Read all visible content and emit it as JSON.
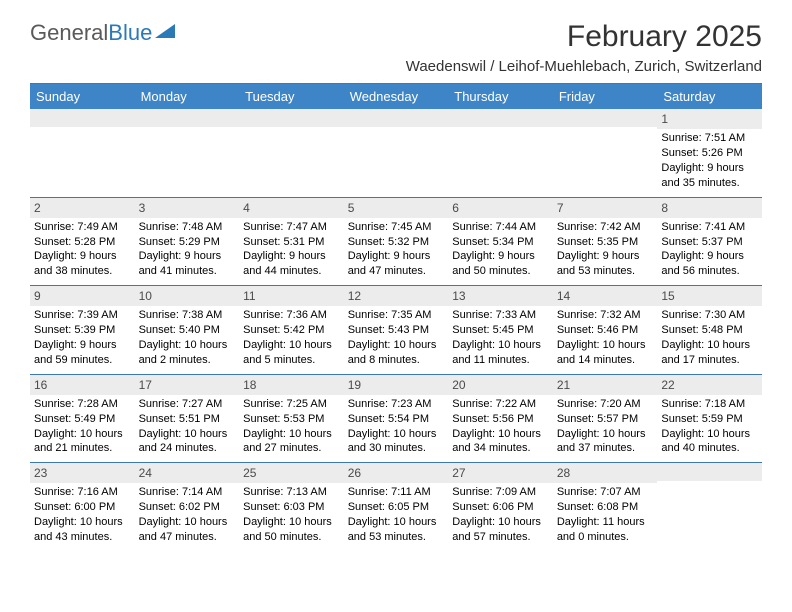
{
  "logo": {
    "text1": "General",
    "text2": "Blue"
  },
  "title": "February 2025",
  "location": "Waedenswil / Leihof-Muehlebach, Zurich, Switzerland",
  "colors": {
    "header_bg": "#3d85c6",
    "header_text": "#ffffff",
    "daynum_bg": "#ececec",
    "rule": "#3d78b0",
    "logo_gray": "#5a5a5a",
    "logo_blue": "#2a7ab8"
  },
  "weekdays": [
    "Sunday",
    "Monday",
    "Tuesday",
    "Wednesday",
    "Thursday",
    "Friday",
    "Saturday"
  ],
  "weeks": [
    [
      {
        "n": "",
        "sr": "",
        "ss": "",
        "dl": ""
      },
      {
        "n": "",
        "sr": "",
        "ss": "",
        "dl": ""
      },
      {
        "n": "",
        "sr": "",
        "ss": "",
        "dl": ""
      },
      {
        "n": "",
        "sr": "",
        "ss": "",
        "dl": ""
      },
      {
        "n": "",
        "sr": "",
        "ss": "",
        "dl": ""
      },
      {
        "n": "",
        "sr": "",
        "ss": "",
        "dl": ""
      },
      {
        "n": "1",
        "sr": "Sunrise: 7:51 AM",
        "ss": "Sunset: 5:26 PM",
        "dl": "Daylight: 9 hours and 35 minutes."
      }
    ],
    [
      {
        "n": "2",
        "sr": "Sunrise: 7:49 AM",
        "ss": "Sunset: 5:28 PM",
        "dl": "Daylight: 9 hours and 38 minutes."
      },
      {
        "n": "3",
        "sr": "Sunrise: 7:48 AM",
        "ss": "Sunset: 5:29 PM",
        "dl": "Daylight: 9 hours and 41 minutes."
      },
      {
        "n": "4",
        "sr": "Sunrise: 7:47 AM",
        "ss": "Sunset: 5:31 PM",
        "dl": "Daylight: 9 hours and 44 minutes."
      },
      {
        "n": "5",
        "sr": "Sunrise: 7:45 AM",
        "ss": "Sunset: 5:32 PM",
        "dl": "Daylight: 9 hours and 47 minutes."
      },
      {
        "n": "6",
        "sr": "Sunrise: 7:44 AM",
        "ss": "Sunset: 5:34 PM",
        "dl": "Daylight: 9 hours and 50 minutes."
      },
      {
        "n": "7",
        "sr": "Sunrise: 7:42 AM",
        "ss": "Sunset: 5:35 PM",
        "dl": "Daylight: 9 hours and 53 minutes."
      },
      {
        "n": "8",
        "sr": "Sunrise: 7:41 AM",
        "ss": "Sunset: 5:37 PM",
        "dl": "Daylight: 9 hours and 56 minutes."
      }
    ],
    [
      {
        "n": "9",
        "sr": "Sunrise: 7:39 AM",
        "ss": "Sunset: 5:39 PM",
        "dl": "Daylight: 9 hours and 59 minutes."
      },
      {
        "n": "10",
        "sr": "Sunrise: 7:38 AM",
        "ss": "Sunset: 5:40 PM",
        "dl": "Daylight: 10 hours and 2 minutes."
      },
      {
        "n": "11",
        "sr": "Sunrise: 7:36 AM",
        "ss": "Sunset: 5:42 PM",
        "dl": "Daylight: 10 hours and 5 minutes."
      },
      {
        "n": "12",
        "sr": "Sunrise: 7:35 AM",
        "ss": "Sunset: 5:43 PM",
        "dl": "Daylight: 10 hours and 8 minutes."
      },
      {
        "n": "13",
        "sr": "Sunrise: 7:33 AM",
        "ss": "Sunset: 5:45 PM",
        "dl": "Daylight: 10 hours and 11 minutes."
      },
      {
        "n": "14",
        "sr": "Sunrise: 7:32 AM",
        "ss": "Sunset: 5:46 PM",
        "dl": "Daylight: 10 hours and 14 minutes."
      },
      {
        "n": "15",
        "sr": "Sunrise: 7:30 AM",
        "ss": "Sunset: 5:48 PM",
        "dl": "Daylight: 10 hours and 17 minutes."
      }
    ],
    [
      {
        "n": "16",
        "sr": "Sunrise: 7:28 AM",
        "ss": "Sunset: 5:49 PM",
        "dl": "Daylight: 10 hours and 21 minutes."
      },
      {
        "n": "17",
        "sr": "Sunrise: 7:27 AM",
        "ss": "Sunset: 5:51 PM",
        "dl": "Daylight: 10 hours and 24 minutes."
      },
      {
        "n": "18",
        "sr": "Sunrise: 7:25 AM",
        "ss": "Sunset: 5:53 PM",
        "dl": "Daylight: 10 hours and 27 minutes."
      },
      {
        "n": "19",
        "sr": "Sunrise: 7:23 AM",
        "ss": "Sunset: 5:54 PM",
        "dl": "Daylight: 10 hours and 30 minutes."
      },
      {
        "n": "20",
        "sr": "Sunrise: 7:22 AM",
        "ss": "Sunset: 5:56 PM",
        "dl": "Daylight: 10 hours and 34 minutes."
      },
      {
        "n": "21",
        "sr": "Sunrise: 7:20 AM",
        "ss": "Sunset: 5:57 PM",
        "dl": "Daylight: 10 hours and 37 minutes."
      },
      {
        "n": "22",
        "sr": "Sunrise: 7:18 AM",
        "ss": "Sunset: 5:59 PM",
        "dl": "Daylight: 10 hours and 40 minutes."
      }
    ],
    [
      {
        "n": "23",
        "sr": "Sunrise: 7:16 AM",
        "ss": "Sunset: 6:00 PM",
        "dl": "Daylight: 10 hours and 43 minutes."
      },
      {
        "n": "24",
        "sr": "Sunrise: 7:14 AM",
        "ss": "Sunset: 6:02 PM",
        "dl": "Daylight: 10 hours and 47 minutes."
      },
      {
        "n": "25",
        "sr": "Sunrise: 7:13 AM",
        "ss": "Sunset: 6:03 PM",
        "dl": "Daylight: 10 hours and 50 minutes."
      },
      {
        "n": "26",
        "sr": "Sunrise: 7:11 AM",
        "ss": "Sunset: 6:05 PM",
        "dl": "Daylight: 10 hours and 53 minutes."
      },
      {
        "n": "27",
        "sr": "Sunrise: 7:09 AM",
        "ss": "Sunset: 6:06 PM",
        "dl": "Daylight: 10 hours and 57 minutes."
      },
      {
        "n": "28",
        "sr": "Sunrise: 7:07 AM",
        "ss": "Sunset: 6:08 PM",
        "dl": "Daylight: 11 hours and 0 minutes."
      },
      {
        "n": "",
        "sr": "",
        "ss": "",
        "dl": ""
      }
    ]
  ]
}
